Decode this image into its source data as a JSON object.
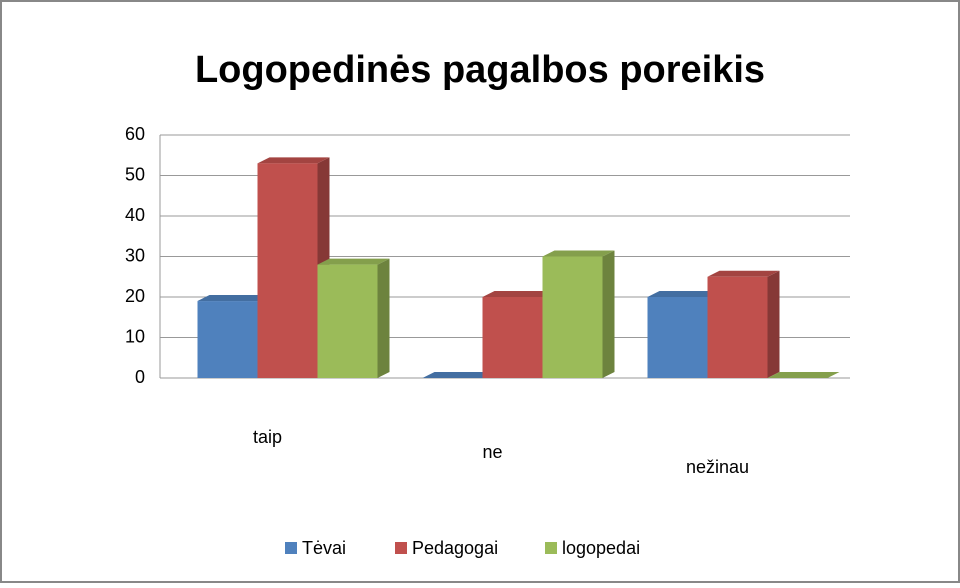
{
  "chart_data": {
    "type": "bar3d",
    "title": "Logopedinės pagalbos poreikis",
    "categories": [
      "taip",
      "ne",
      "nežinau"
    ],
    "series": [
      {
        "name": "Tėvai",
        "color": "#4f81bd",
        "values": [
          19,
          0,
          20
        ]
      },
      {
        "name": "Pedagogai",
        "color": "#c0504d",
        "values": [
          53,
          20,
          25
        ]
      },
      {
        "name": "logopedai",
        "color": "#9bbb59",
        "values": [
          28,
          30,
          0
        ]
      }
    ],
    "ylim": [
      0,
      60
    ],
    "yticks": [
      0,
      10,
      20,
      30,
      40,
      50,
      60
    ],
    "grid": true,
    "legend": "bottom"
  }
}
